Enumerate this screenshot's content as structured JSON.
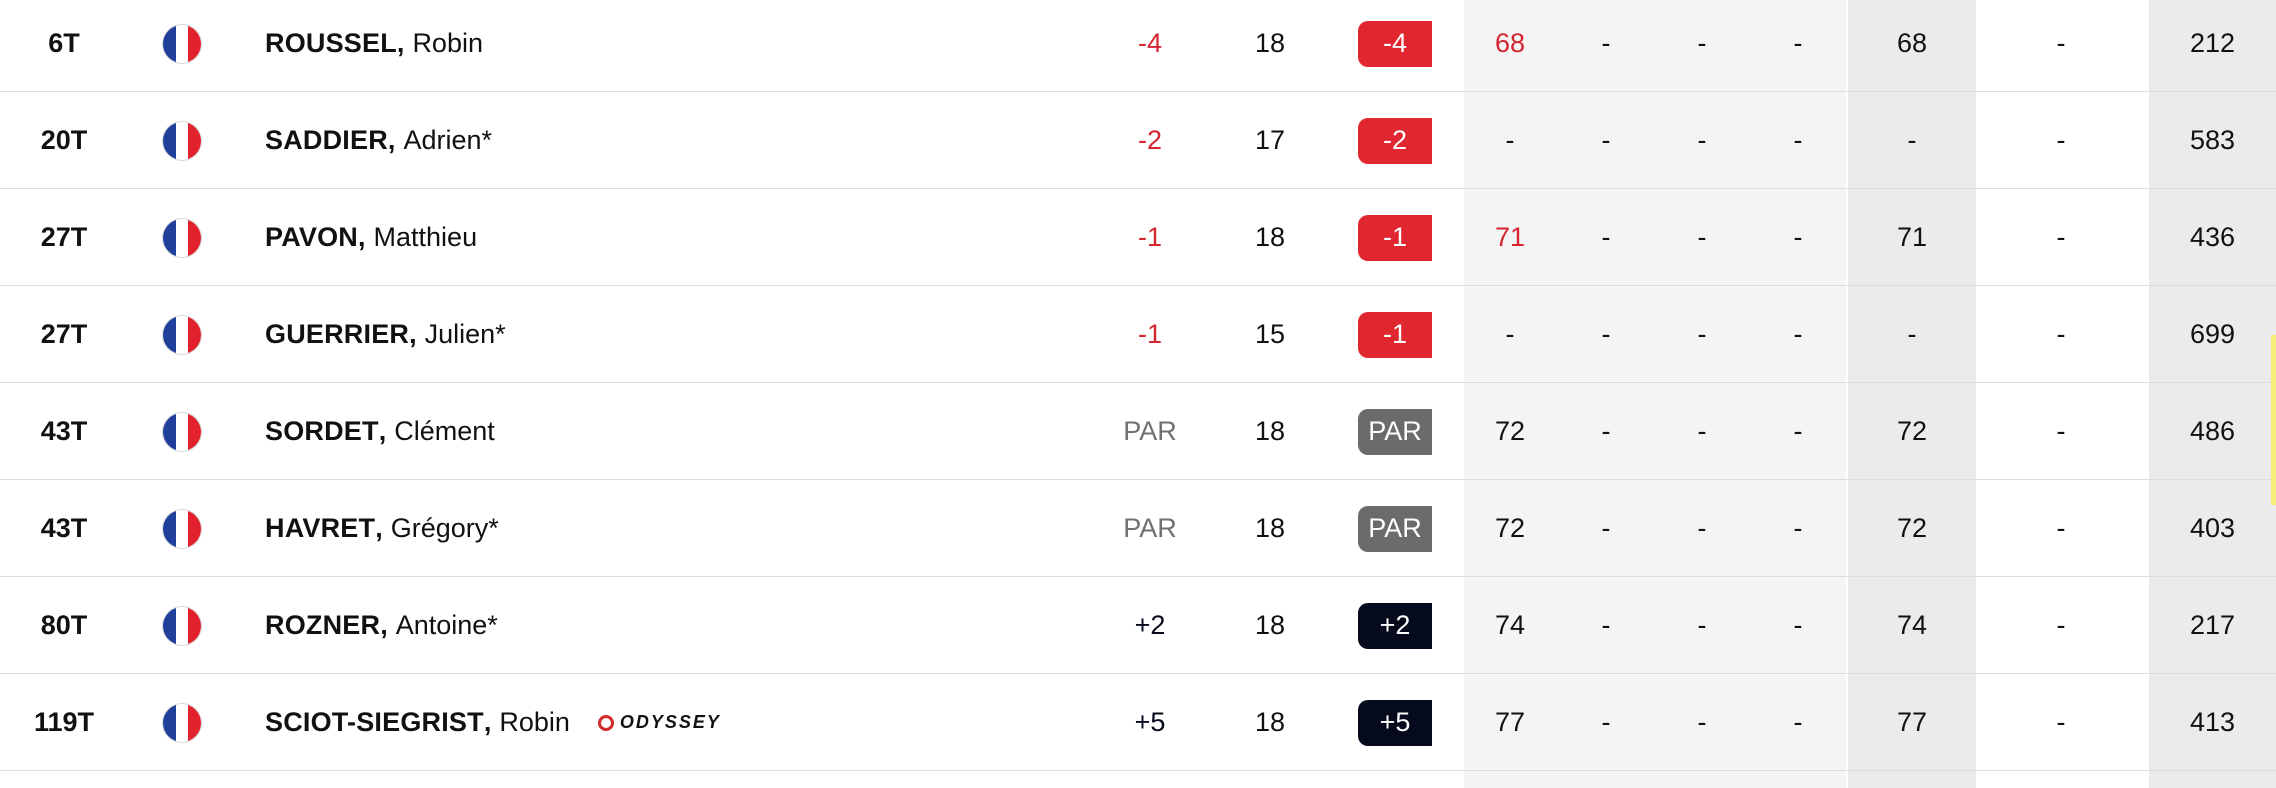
{
  "leaderboard": {
    "colors": {
      "under_par": "#d3252f",
      "even_par": "#707070",
      "over_par": "#050a1c",
      "badge_under": "#e0262f",
      "badge_even": "#6b6b6b",
      "badge_over": "#050a1c",
      "text": "#111111"
    },
    "rows": [
      {
        "pos": "6T",
        "country": "France",
        "flag_icon": "france-flag-icon",
        "last": "ROUSSEL",
        "sep": ",",
        "first": "Robin",
        "sponsor": "",
        "today": "-4",
        "thru": "18",
        "score": "-4",
        "status": "under",
        "r1": "68",
        "r1_under": true,
        "r2": "-",
        "r3": "-",
        "r4": "-",
        "total": "68",
        "proj": "-",
        "points": "212"
      },
      {
        "pos": "20T",
        "country": "France",
        "flag_icon": "france-flag-icon",
        "last": "SADDIER",
        "sep": ",",
        "first": "Adrien*",
        "sponsor": "",
        "today": "-2",
        "thru": "17",
        "score": "-2",
        "status": "under",
        "r1": "-",
        "r1_under": false,
        "r2": "-",
        "r3": "-",
        "r4": "-",
        "total": "-",
        "proj": "-",
        "points": "583"
      },
      {
        "pos": "27T",
        "country": "France",
        "flag_icon": "france-flag-icon",
        "last": "PAVON",
        "sep": ",",
        "first": "Matthieu",
        "sponsor": "",
        "today": "-1",
        "thru": "18",
        "score": "-1",
        "status": "under",
        "r1": "71",
        "r1_under": true,
        "r2": "-",
        "r3": "-",
        "r4": "-",
        "total": "71",
        "proj": "-",
        "points": "436"
      },
      {
        "pos": "27T",
        "country": "France",
        "flag_icon": "france-flag-icon",
        "last": "GUERRIER",
        "sep": ",",
        "first": "Julien*",
        "sponsor": "",
        "today": "-1",
        "thru": "15",
        "score": "-1",
        "status": "under",
        "r1": "-",
        "r1_under": false,
        "r2": "-",
        "r3": "-",
        "r4": "-",
        "total": "-",
        "proj": "-",
        "points": "699"
      },
      {
        "pos": "43T",
        "country": "France",
        "flag_icon": "france-flag-icon",
        "last": "SORDET",
        "sep": ",",
        "first": "Clément",
        "sponsor": "",
        "today": "PAR",
        "thru": "18",
        "score": "PAR",
        "status": "even",
        "r1": "72",
        "r1_under": false,
        "r2": "-",
        "r3": "-",
        "r4": "-",
        "total": "72",
        "proj": "-",
        "points": "486"
      },
      {
        "pos": "43T",
        "country": "France",
        "flag_icon": "france-flag-icon",
        "last": "HAVRET",
        "sep": ",",
        "first": "Grégory*",
        "sponsor": "",
        "today": "PAR",
        "thru": "18",
        "score": "PAR",
        "status": "even",
        "r1": "72",
        "r1_under": false,
        "r2": "-",
        "r3": "-",
        "r4": "-",
        "total": "72",
        "proj": "-",
        "points": "403"
      },
      {
        "pos": "80T",
        "country": "France",
        "flag_icon": "france-flag-icon",
        "last": "ROZNER",
        "sep": ",",
        "first": "Antoine*",
        "sponsor": "",
        "today": "+2",
        "thru": "18",
        "score": "+2",
        "status": "over",
        "r1": "74",
        "r1_under": false,
        "r2": "-",
        "r3": "-",
        "r4": "-",
        "total": "74",
        "proj": "-",
        "points": "217"
      },
      {
        "pos": "119T",
        "country": "France",
        "flag_icon": "france-flag-icon",
        "last": "SCIOT-SIEGRIST",
        "sep": ",",
        "first": "Robin",
        "sponsor": "ODYSSEY",
        "today": "+5",
        "thru": "18",
        "score": "+5",
        "status": "over",
        "r1": "77",
        "r1_under": false,
        "r2": "-",
        "r3": "-",
        "r4": "-",
        "total": "77",
        "proj": "-",
        "points": "413"
      }
    ]
  }
}
